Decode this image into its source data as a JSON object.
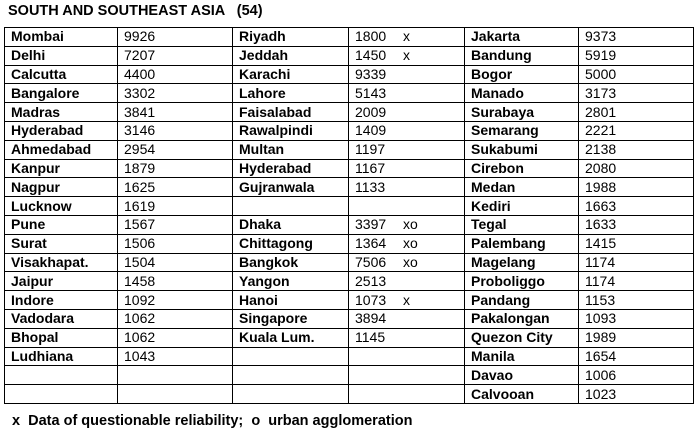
{
  "title": "SOUTH AND SOUTHEAST ASIA   (54)",
  "table": {
    "rows": [
      [
        "Mombai",
        9926,
        "Riyadh",
        1800,
        "x",
        "Jakarta",
        9373
      ],
      [
        "Delhi",
        7207,
        "Jeddah",
        1450,
        "x",
        "Bandung",
        5919
      ],
      [
        "Calcutta",
        4400,
        "Karachi",
        9339,
        null,
        "Bogor",
        5000
      ],
      [
        "Bangalore",
        3302,
        "Lahore",
        5143,
        null,
        "Manado",
        3173
      ],
      [
        "Madras",
        3841,
        "Faisalabad",
        2009,
        null,
        "Surabaya",
        2801
      ],
      [
        "Hyderabad",
        3146,
        "Rawalpindi",
        1409,
        null,
        "Semarang",
        2221
      ],
      [
        "Ahmedabad",
        2954,
        "Multan",
        1197,
        null,
        "Sukabumi",
        2138
      ],
      [
        "Kanpur",
        1879,
        "Hyderabad",
        1167,
        null,
        "Cirebon",
        2080
      ],
      [
        "Nagpur",
        1625,
        "Gujranwala",
        1133,
        null,
        "Medan",
        1988
      ],
      [
        "Lucknow",
        1619,
        null,
        null,
        null,
        "Kediri",
        1663
      ],
      [
        "Pune",
        1567,
        "Dhaka",
        3397,
        "xo",
        "Tegal",
        1633
      ],
      [
        "Surat",
        1506,
        "Chittagong",
        1364,
        "xo",
        "Palembang",
        1415
      ],
      [
        "Visakhapat.",
        1504,
        "Bangkok",
        7506,
        "xo",
        "Magelang",
        1174
      ],
      [
        "Jaipur",
        1458,
        "Yangon",
        2513,
        null,
        "Proboliggo",
        1174
      ],
      [
        "Indore",
        1092,
        "Hanoi",
        1073,
        "x",
        "Pandang",
        1153
      ],
      [
        "Vadodara",
        1062,
        "Singapore",
        3894,
        null,
        "Pakalongan",
        1093
      ],
      [
        "Bhopal",
        1062,
        "Kuala Lum.",
        1145,
        null,
        "Quezon City",
        1989
      ],
      [
        "Ludhiana",
        1043,
        null,
        null,
        null,
        "Manila",
        1654
      ],
      [
        null,
        null,
        null,
        null,
        null,
        "Davao",
        1006
      ],
      [
        null,
        null,
        null,
        null,
        null,
        "Calvooan",
        1023
      ]
    ]
  },
  "footnote": {
    "x_mark": "x",
    "x_text": "Data of questionable reliability;",
    "o_mark": "o",
    "o_text": "urban agglomeration"
  }
}
